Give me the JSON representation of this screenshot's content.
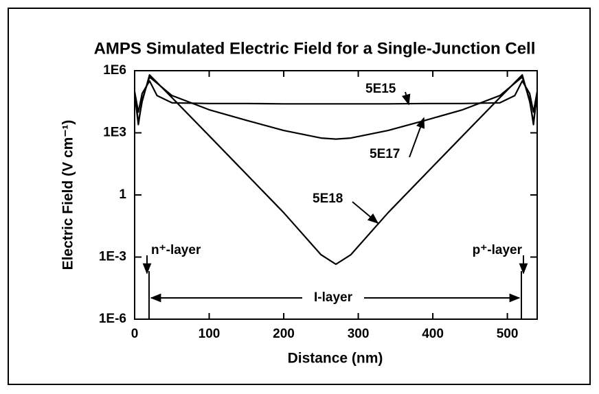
{
  "chart_data": {
    "type": "line",
    "title": "AMPS Simulated Electric Field for a Single-Junction Cell",
    "xlabel": "Distance (nm)",
    "ylabel": "Electric Field (V cm⁻¹)",
    "log_y": true,
    "x": [
      0,
      5,
      10,
      20,
      30,
      50,
      100,
      150,
      200,
      250,
      270,
      290,
      340,
      390,
      440,
      490,
      510,
      520,
      530,
      535,
      540
    ],
    "series": [
      {
        "name": "5E15",
        "color": "#000000",
        "values": [
          100000,
          10000,
          79000,
          320000,
          63000,
          28000,
          26000,
          26000,
          25000,
          25000,
          25000,
          25000,
          25000,
          26000,
          26000,
          28000,
          63000,
          320000,
          79000,
          10000,
          100000
        ]
      },
      {
        "name": "5E17",
        "color": "#000000",
        "values": [
          79000,
          2500,
          40000,
          500000,
          250000,
          63000,
          13000,
          4000,
          1300,
          560,
          500,
          560,
          1300,
          4000,
          13000,
          63000,
          250000,
          500000,
          40000,
          2500,
          79000
        ]
      },
      {
        "name": "5E18",
        "color": "#000000",
        "values": [
          79000,
          3200,
          32000,
          630000,
          270000,
          50000,
          720,
          10,
          0.14,
          0.0013,
          0.00045,
          0.0013,
          0.14,
          10,
          720,
          50000,
          270000,
          630000,
          32000,
          3200,
          79000
        ]
      }
    ],
    "annotations": [
      "n⁺-layer",
      "I-layer",
      "p⁺-layer"
    ],
    "xlim": [
      0,
      540
    ],
    "xticks": [
      0,
      100,
      200,
      300,
      400,
      500
    ],
    "ylim": [
      1e-06,
      1000000
    ],
    "yticks": [
      {
        "value": 1e-06,
        "label": "1E-6"
      },
      {
        "value": 0.001,
        "label": "1E-3"
      },
      1,
      {
        "value": 1000,
        "label": "1E3"
      },
      {
        "value": 1000000,
        "label": "1E6"
      }
    ]
  }
}
